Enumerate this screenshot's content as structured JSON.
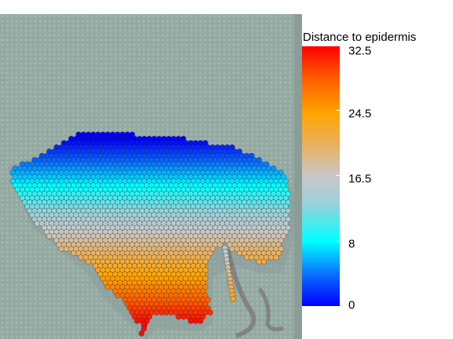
{
  "legend": {
    "title": "Distance to epidermis",
    "ticks": [
      "32.5",
      "24.5",
      "16.5",
      "8",
      "0"
    ],
    "range": [
      0,
      32.5
    ],
    "colors": [
      "#0000ff",
      "#00ffff",
      "#c8c8c8",
      "#ffa500",
      "#ff0000"
    ]
  },
  "image": {
    "background_color": "#95a9a3",
    "spot_border_color": "#1a1a1a"
  }
}
